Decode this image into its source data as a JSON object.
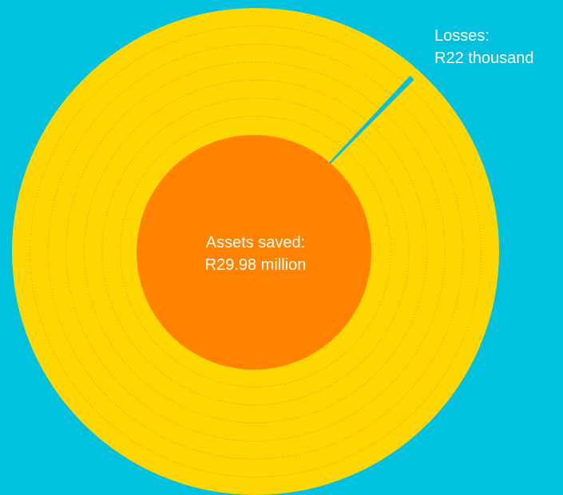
{
  "chart_data": {
    "type": "pie",
    "slices": [
      {
        "label": "Losses:",
        "value_text": "R22 thousand",
        "value": 22000,
        "color": "#00c1de"
      }
    ],
    "center": {
      "label": "Assets saved:",
      "value_text": "R29.98 million",
      "value": 29980000,
      "color": "#ff8200"
    },
    "ring_color": "#ffd700",
    "ring_dash_color": "#ff8200",
    "ring_count": 6,
    "background": "#00c1de"
  }
}
